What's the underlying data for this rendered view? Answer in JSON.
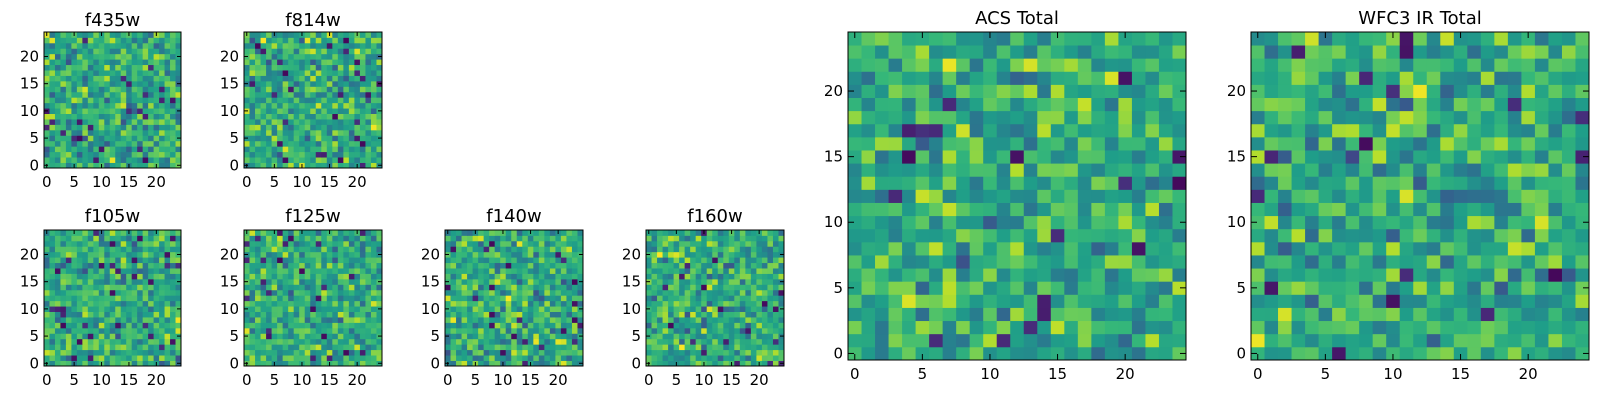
{
  "chart_data": [
    {
      "type": "heatmap",
      "title": "f435w",
      "xticks": [
        "0",
        "5",
        "10",
        "15",
        "20"
      ],
      "yticks": [
        "0",
        "5",
        "10",
        "15",
        "20"
      ],
      "xlim": [
        0,
        25
      ],
      "ylim": [
        0,
        25
      ],
      "grid": false,
      "colormap": "viridis",
      "seed": 11,
      "pixels": 25
    },
    {
      "type": "heatmap",
      "title": "f814w",
      "xticks": [
        "0",
        "5",
        "10",
        "15",
        "20"
      ],
      "yticks": [
        "0",
        "5",
        "10",
        "15",
        "20"
      ],
      "xlim": [
        0,
        25
      ],
      "ylim": [
        0,
        25
      ],
      "grid": false,
      "colormap": "viridis",
      "seed": 23,
      "pixels": 25
    },
    {
      "type": "heatmap",
      "title": "f105w",
      "xticks": [
        "0",
        "5",
        "10",
        "15",
        "20"
      ],
      "yticks": [
        "0",
        "5",
        "10",
        "15",
        "20"
      ],
      "xlim": [
        0,
        25
      ],
      "ylim": [
        0,
        25
      ],
      "grid": false,
      "colormap": "viridis",
      "seed": 37,
      "pixels": 25
    },
    {
      "type": "heatmap",
      "title": "f125w",
      "xticks": [
        "0",
        "5",
        "10",
        "15",
        "20"
      ],
      "yticks": [
        "0",
        "5",
        "10",
        "15",
        "20"
      ],
      "xlim": [
        0,
        25
      ],
      "ylim": [
        0,
        25
      ],
      "grid": false,
      "colormap": "viridis",
      "seed": 41,
      "pixels": 25
    },
    {
      "type": "heatmap",
      "title": "f140w",
      "xticks": [
        "0",
        "5",
        "10",
        "15",
        "20"
      ],
      "yticks": [
        "0",
        "5",
        "10",
        "15",
        "20"
      ],
      "xlim": [
        0,
        25
      ],
      "ylim": [
        0,
        25
      ],
      "grid": false,
      "colormap": "viridis",
      "seed": 53,
      "pixels": 25
    },
    {
      "type": "heatmap",
      "title": "f160w",
      "xticks": [
        "0",
        "5",
        "10",
        "15",
        "20"
      ],
      "yticks": [
        "0",
        "5",
        "10",
        "15",
        "20"
      ],
      "xlim": [
        0,
        25
      ],
      "ylim": [
        0,
        25
      ],
      "grid": false,
      "colormap": "viridis",
      "seed": 67,
      "pixels": 25
    },
    {
      "type": "heatmap",
      "title": "ACS Total",
      "xticks": [
        "0",
        "5",
        "10",
        "15",
        "20"
      ],
      "yticks": [
        "0",
        "5",
        "10",
        "15",
        "20"
      ],
      "xlim": [
        0,
        25
      ],
      "ylim": [
        0,
        25
      ],
      "grid": false,
      "colormap": "viridis",
      "seed": 79,
      "pixels": 25
    },
    {
      "type": "heatmap",
      "title": "WFC3 IR Total",
      "xticks": [
        "0",
        "5",
        "10",
        "15",
        "20"
      ],
      "yticks": [
        "0",
        "5",
        "10",
        "15",
        "20"
      ],
      "xlim": [
        0,
        25
      ],
      "ylim": [
        0,
        25
      ],
      "grid": false,
      "colormap": "viridis",
      "seed": 97,
      "pixels": 25
    }
  ]
}
